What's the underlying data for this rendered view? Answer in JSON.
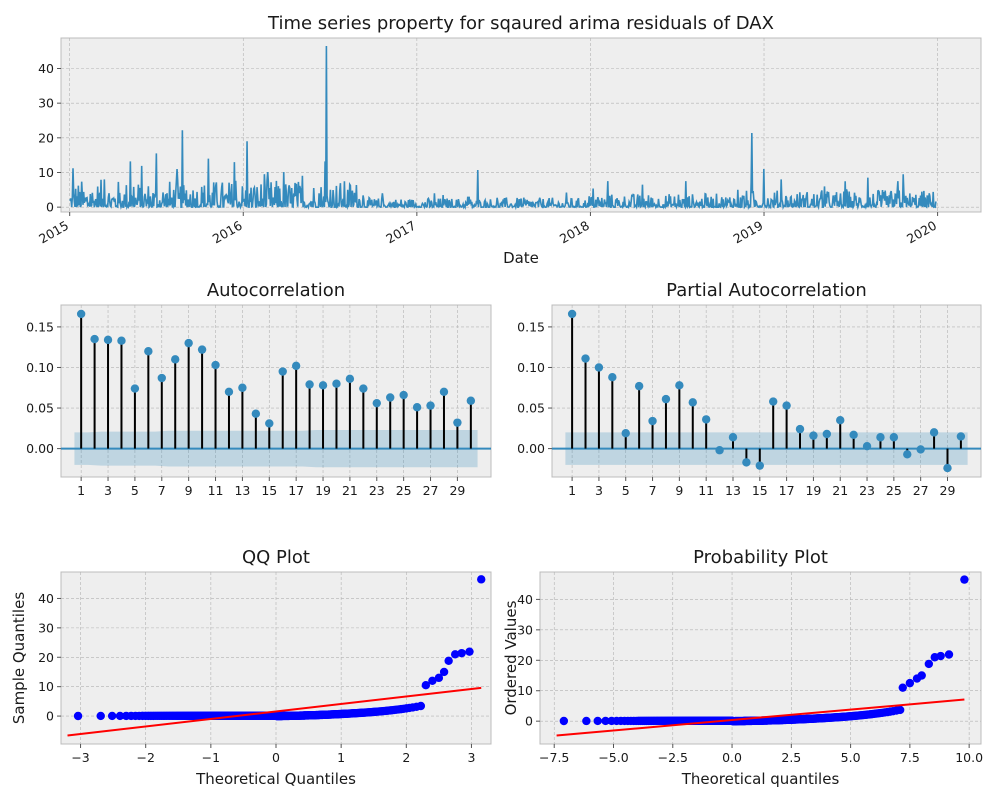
{
  "chart_data": [
    {
      "type": "line",
      "title": "Time series property for sqaured arima residuals of DAX",
      "xlabel": "Date",
      "ylabel": "",
      "xlim": [
        2014.95,
        2020.25
      ],
      "ylim": [
        -1.4,
        48.8
      ],
      "x_ticks": [
        "2015",
        "2016",
        "2017",
        "2018",
        "2019",
        "2020"
      ],
      "y_ticks": [
        0,
        10,
        20,
        30,
        40
      ],
      "grid": true,
      "color": "#348ABD",
      "spikes": [
        {
          "x": 2015.02,
          "y": 11.2
        },
        {
          "x": 2015.2,
          "y": 8.0
        },
        {
          "x": 2015.35,
          "y": 13.2
        },
        {
          "x": 2015.5,
          "y": 15.5
        },
        {
          "x": 2015.62,
          "y": 11.0
        },
        {
          "x": 2015.65,
          "y": 22.2
        },
        {
          "x": 2015.8,
          "y": 14.0
        },
        {
          "x": 2015.95,
          "y": 13.0
        },
        {
          "x": 2016.02,
          "y": 19.0
        },
        {
          "x": 2016.12,
          "y": 9.5
        },
        {
          "x": 2016.3,
          "y": 7.0
        },
        {
          "x": 2016.47,
          "y": 13.2
        },
        {
          "x": 2016.48,
          "y": 46.5
        },
        {
          "x": 2016.6,
          "y": 5.0
        },
        {
          "x": 2016.8,
          "y": 4.0
        },
        {
          "x": 2017.1,
          "y": 4.0
        },
        {
          "x": 2017.3,
          "y": 3.0
        },
        {
          "x": 2017.35,
          "y": 10.7
        },
        {
          "x": 2018.1,
          "y": 7.5
        },
        {
          "x": 2018.3,
          "y": 6.5
        },
        {
          "x": 2018.55,
          "y": 7.5
        },
        {
          "x": 2018.85,
          "y": 5.0
        },
        {
          "x": 2018.93,
          "y": 21.4
        },
        {
          "x": 2019.0,
          "y": 11.0
        },
        {
          "x": 2019.1,
          "y": 8.0
        },
        {
          "x": 2019.35,
          "y": 6.0
        },
        {
          "x": 2019.6,
          "y": 8.5
        },
        {
          "x": 2019.77,
          "y": 7.5
        },
        {
          "x": 2019.8,
          "y": 9.5
        },
        {
          "x": 2019.95,
          "y": 4.0
        }
      ]
    },
    {
      "type": "stem",
      "title": "Autocorrelation",
      "xlabel": "",
      "ylabel": "",
      "xlim": [
        -0.5,
        31.5
      ],
      "ylim": [
        -0.035,
        0.177
      ],
      "x_ticks": [
        1,
        3,
        5,
        7,
        9,
        11,
        13,
        15,
        17,
        19,
        21,
        23,
        25,
        27,
        29
      ],
      "y_ticks": [
        "0.00",
        "0.05",
        "0.10",
        "0.15"
      ],
      "grid": true,
      "lags": [
        1,
        2,
        3,
        4,
        5,
        6,
        7,
        8,
        9,
        10,
        11,
        12,
        13,
        14,
        15,
        16,
        17,
        18,
        19,
        20,
        21,
        22,
        23,
        24,
        25,
        26,
        27,
        28,
        29,
        30
      ],
      "values": [
        0.166,
        0.135,
        0.134,
        0.133,
        0.074,
        0.12,
        0.087,
        0.11,
        0.13,
        0.122,
        0.103,
        0.07,
        0.075,
        0.043,
        0.031,
        0.095,
        0.102,
        0.079,
        0.078,
        0.08,
        0.086,
        0.074,
        0.056,
        0.063,
        0.066,
        0.051,
        0.053,
        0.07,
        0.032,
        0.059
      ],
      "confint_upper": [
        0.02,
        0.02,
        0.021,
        0.021,
        0.021,
        0.021,
        0.021,
        0.022,
        0.022,
        0.022,
        0.022,
        0.022,
        0.022,
        0.022,
        0.022,
        0.022,
        0.022,
        0.022,
        0.023,
        0.023,
        0.023,
        0.023,
        0.023,
        0.023,
        0.023,
        0.023,
        0.023,
        0.023,
        0.023,
        0.023
      ]
    },
    {
      "type": "stem",
      "title": "Partial Autocorrelation",
      "xlabel": "",
      "ylabel": "",
      "xlim": [
        -0.5,
        31.5
      ],
      "ylim": [
        -0.035,
        0.177
      ],
      "x_ticks": [
        1,
        3,
        5,
        7,
        9,
        11,
        13,
        15,
        17,
        19,
        21,
        23,
        25,
        27,
        29
      ],
      "y_ticks": [
        "0.00",
        "0.05",
        "0.10",
        "0.15"
      ],
      "grid": true,
      "lags": [
        1,
        2,
        3,
        4,
        5,
        6,
        7,
        8,
        9,
        10,
        11,
        12,
        13,
        14,
        15,
        16,
        17,
        18,
        19,
        20,
        21,
        22,
        23,
        24,
        25,
        26,
        27,
        28,
        29,
        30
      ],
      "values": [
        0.166,
        0.111,
        0.1,
        0.088,
        0.019,
        0.077,
        0.034,
        0.061,
        0.078,
        0.057,
        0.036,
        -0.002,
        0.014,
        -0.017,
        -0.021,
        0.058,
        0.053,
        0.024,
        0.016,
        0.018,
        0.035,
        0.017,
        0.003,
        0.014,
        0.014,
        -0.007,
        -0.001,
        0.02,
        -0.024,
        0.015
      ],
      "confint_upper": 0.02
    },
    {
      "type": "scatter",
      "title": "QQ Plot",
      "xlabel": "Theoretical Quantiles",
      "ylabel": "Sample Quantiles",
      "xlim": [
        -3.3,
        3.3
      ],
      "ylim": [
        -9.5,
        49.0
      ],
      "x_ticks": [
        "−3",
        "−2",
        "−1",
        "0",
        "1",
        "2",
        "3"
      ],
      "y_ticks": [
        0,
        10,
        20,
        30,
        40
      ],
      "grid": true,
      "x_range": [
        -3.15,
        3.15
      ],
      "reference_line": [
        [
          -3.2,
          -6.6
        ],
        [
          3.15,
          9.6
        ]
      ],
      "upper_tail": [
        [
          2.3,
          10.5
        ],
        [
          2.4,
          12.0
        ],
        [
          2.5,
          13.0
        ],
        [
          2.58,
          15.0
        ],
        [
          2.65,
          18.8
        ],
        [
          2.75,
          21.0
        ],
        [
          2.85,
          21.4
        ],
        [
          2.97,
          21.9
        ],
        [
          3.15,
          46.5
        ]
      ]
    },
    {
      "type": "scatter",
      "title": "Probability Plot",
      "xlabel": "Theoretical quantiles",
      "ylabel": "Ordered Values",
      "xlim": [
        -8.1,
        10.5
      ],
      "ylim": [
        -7.5,
        49.0
      ],
      "x_ticks": [
        "−7.5",
        "−5.0",
        "−2.5",
        "0.0",
        "2.5",
        "5.0",
        "7.5",
        "10.0"
      ],
      "y_ticks": [
        0,
        10,
        20,
        30,
        40
      ],
      "grid": true,
      "x_range": [
        -7.4,
        9.8
      ],
      "reference_line": [
        [
          -7.4,
          -4.7
        ],
        [
          9.8,
          7.1
        ]
      ],
      "upper_tail": [
        [
          7.2,
          11.0
        ],
        [
          7.5,
          12.5
        ],
        [
          7.8,
          14.0
        ],
        [
          8.0,
          15.0
        ],
        [
          8.3,
          18.8
        ],
        [
          8.55,
          21.0
        ],
        [
          8.8,
          21.4
        ],
        [
          9.15,
          21.9
        ],
        [
          9.8,
          46.5
        ]
      ]
    }
  ]
}
